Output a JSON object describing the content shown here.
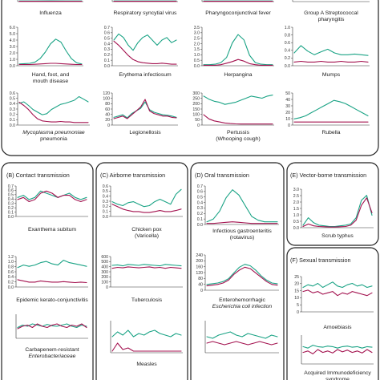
{
  "colors": {
    "series_a": "#1aa385",
    "series_b": "#a3124f",
    "series_c": "#8b36b5",
    "error": "#f2a3bd",
    "frame": "#222222"
  },
  "groups": [
    {
      "id": "A",
      "title": ""
    },
    {
      "id": "B",
      "title": "(B) Contact transmission"
    },
    {
      "id": "C",
      "title": "(C) Airborne transmission"
    },
    {
      "id": "D",
      "title": "(D) Oral transmission"
    },
    {
      "id": "E",
      "title": "(E) Vector-borne transmission"
    },
    {
      "id": "F",
      "title": "(F) Sexual transmission"
    }
  ],
  "chart_data": [
    {
      "id": "influenza",
      "type": "line",
      "title": [
        "Influenza"
      ],
      "yticks": [],
      "ylim": [
        0,
        1
      ],
      "series": [
        {
          "values": [
            0.1,
            0.1,
            0.12,
            0.1,
            0.1
          ]
        },
        {
          "values": [
            0.05,
            0.05,
            0.05,
            0.05,
            0.05
          ]
        }
      ]
    },
    {
      "id": "rsv",
      "type": "line",
      "title": [
        "Respiratory syncytial virus"
      ],
      "yticks": [],
      "ylim": [
        0,
        1
      ],
      "series": [
        {
          "values": [
            0.1,
            0.1,
            0.1,
            0.1,
            0.1
          ]
        },
        {
          "values": [
            0.05,
            0.05,
            0.05,
            0.05,
            0.05
          ]
        }
      ]
    },
    {
      "id": "pcf",
      "type": "line",
      "title": [
        "Pharyngoconjunctival fever"
      ],
      "yticks": [],
      "ylim": [
        0,
        1
      ],
      "series": [
        {
          "values": [
            0.1,
            0.1,
            0.1,
            0.1,
            0.1
          ]
        },
        {
          "values": [
            0.05,
            0.05,
            0.05,
            0.05,
            0.05
          ]
        }
      ]
    },
    {
      "id": "gas",
      "type": "line",
      "title": [
        "Group A Streptococcal",
        "pharyngitis"
      ],
      "yticks": [],
      "ylim": [
        0,
        1
      ],
      "series": []
    },
    {
      "id": "hfmd",
      "type": "line",
      "title": [
        "Hand, foot, and",
        "mouth disease"
      ],
      "yticks": [
        "0.0",
        "1.0",
        "2.0",
        "3.0",
        "4.0",
        "5.0",
        "6.0"
      ],
      "ylim": [
        0,
        6.5
      ],
      "series": [
        {
          "values": [
            0.3,
            0.35,
            0.4,
            0.6,
            1.2,
            2.3,
            3.7,
            4.5,
            4.0,
            2.5,
            1.2,
            0.5,
            0.3
          ]
        },
        {
          "values": [
            0.2,
            0.2,
            0.2,
            0.25,
            0.3,
            0.35,
            0.4,
            0.4,
            0.35,
            0.3,
            0.25,
            0.2,
            0.2
          ]
        }
      ]
    },
    {
      "id": "erythema",
      "type": "line",
      "title": [
        "Erythema infectiosum"
      ],
      "yticks": [
        "0.0",
        "0.1",
        "0.2",
        "0.3",
        "0.4",
        "0.5",
        "0.6",
        "0.7"
      ],
      "ylim": [
        0,
        0.75
      ],
      "series": [
        {
          "values": [
            0.5,
            0.62,
            0.55,
            0.4,
            0.3,
            0.45,
            0.55,
            0.6,
            0.5,
            0.4,
            0.5,
            0.55,
            0.45,
            0.5
          ]
        },
        {
          "values": [
            0.48,
            0.4,
            0.3,
            0.2,
            0.12,
            0.08,
            0.06,
            0.05,
            0.04,
            0.04,
            0.05,
            0.04,
            0.03,
            0.03
          ]
        }
      ]
    },
    {
      "id": "herpangina",
      "type": "line",
      "title": [
        "Herpangina"
      ],
      "yticks": [
        "0.0",
        "0.5",
        "1.0",
        "1.5",
        "2.0",
        "2.5",
        "3.0",
        "3.5"
      ],
      "ylim": [
        0,
        3.7
      ],
      "series": [
        {
          "values": [
            0.1,
            0.1,
            0.15,
            0.3,
            0.8,
            2.2,
            3.0,
            2.5,
            1.0,
            0.3,
            0.15,
            0.1,
            0.1
          ]
        },
        {
          "values": [
            0.05,
            0.05,
            0.05,
            0.1,
            0.25,
            0.4,
            0.6,
            0.45,
            0.2,
            0.1,
            0.05,
            0.05,
            0.05
          ]
        }
      ]
    },
    {
      "id": "mumps",
      "type": "line",
      "title": [
        "Mumps"
      ],
      "yticks": [
        "0.0",
        "0.2",
        "0.4",
        "0.6",
        "0.8",
        "1.0"
      ],
      "ylim": [
        0,
        1.05
      ],
      "series": [
        {
          "values": [
            0.35,
            0.55,
            0.4,
            0.3,
            0.38,
            0.45,
            0.35,
            0.3,
            0.3,
            0.32,
            0.3,
            0.28
          ]
        },
        {
          "values": [
            0.1,
            0.12,
            0.1,
            0.1,
            0.12,
            0.1,
            0.1,
            0.12,
            0.1,
            0.1,
            0.12,
            0.1
          ]
        }
      ]
    },
    {
      "id": "mycoplasma",
      "type": "line",
      "title": [
        "Mycoplasma pneumoniae",
        "pneumonia"
      ],
      "yticks": [
        "0.0",
        "0.1",
        "0.2",
        "0.3",
        "0.4",
        "0.5",
        "0.6"
      ],
      "ylim": [
        0,
        0.62
      ],
      "series": [
        {
          "values": [
            0.42,
            0.45,
            0.38,
            0.3,
            0.25,
            0.2,
            0.22,
            0.3,
            0.35,
            0.4,
            0.42,
            0.45,
            0.48,
            0.55,
            0.5,
            0.45
          ]
        },
        {
          "values": [
            0.44,
            0.38,
            0.3,
            0.2,
            0.12,
            0.08,
            0.07,
            0.06,
            0.06,
            0.07,
            0.06,
            0.06,
            0.05,
            0.05,
            0.05,
            0.05
          ]
        }
      ]
    },
    {
      "id": "legionellosis",
      "type": "line",
      "title": [
        "Legionellosis"
      ],
      "yticks": [
        "0",
        "20",
        "40",
        "60",
        "80",
        "100",
        "120"
      ],
      "ylim": [
        0,
        125
      ],
      "series": [
        {
          "values": [
            30,
            35,
            40,
            28,
            45,
            55,
            65,
            90,
            60,
            50,
            45,
            40,
            38,
            35,
            30
          ]
        },
        {
          "values": [
            25,
            30,
            35,
            25,
            40,
            55,
            70,
            100,
            55,
            45,
            40,
            35,
            35,
            30,
            28
          ]
        }
      ]
    },
    {
      "id": "pertussis",
      "type": "line",
      "title": [
        "Pertussis",
        "(Whooping cough)"
      ],
      "yticks": [
        "0",
        "50",
        "100",
        "150",
        "200",
        "250",
        "300"
      ],
      "ylim": [
        0,
        310
      ],
      "series": [
        {
          "values": [
            280,
            250,
            230,
            220,
            200,
            210,
            220,
            240,
            260,
            280,
            270,
            260,
            280,
            290
          ]
        },
        {
          "values": [
            100,
            60,
            40,
            30,
            20,
            15,
            12,
            10,
            10,
            10,
            10,
            10,
            10,
            10
          ]
        }
      ]
    },
    {
      "id": "rubella",
      "type": "line",
      "title": [
        "Rubella"
      ],
      "yticks": [
        "0",
        "10",
        "20",
        "30",
        "40",
        "50"
      ],
      "ylim": [
        0,
        52
      ],
      "series": [
        {
          "values": [
            10,
            12,
            15,
            20,
            25,
            30,
            35,
            40,
            38,
            35,
            30,
            25,
            20,
            15
          ]
        },
        {
          "values": [
            5,
            5,
            5,
            5,
            5,
            5,
            5,
            5,
            5,
            5,
            5,
            5,
            5,
            5
          ]
        }
      ]
    },
    {
      "id": "exanthema",
      "type": "line",
      "title": [
        "Exanthema subitum"
      ],
      "yticks": [
        "0.0",
        "0.1",
        "0.2",
        "0.3",
        "0.4",
        "0.5",
        "0.6",
        "0.7"
      ],
      "ylim": [
        0,
        0.72
      ],
      "series": [
        {
          "values": [
            0.45,
            0.5,
            0.4,
            0.45,
            0.6,
            0.55,
            0.5,
            0.45,
            0.5,
            0.55,
            0.45,
            0.4,
            0.45
          ]
        },
        {
          "values": [
            0.4,
            0.45,
            0.35,
            0.4,
            0.55,
            0.6,
            0.55,
            0.45,
            0.5,
            0.5,
            0.4,
            0.35,
            0.4
          ]
        }
      ]
    },
    {
      "id": "ekc",
      "type": "line",
      "title": [
        "Epidemic kerato-conjunctivitis"
      ],
      "yticks": [
        "0.0",
        "0.2",
        "0.4",
        "0.6",
        "0.8",
        "1.0",
        "1.2"
      ],
      "ylim": [
        0,
        1.25
      ],
      "series": [
        {
          "values": [
            0.8,
            0.9,
            0.85,
            0.9,
            1.0,
            1.05,
            0.95,
            0.9,
            1.1,
            1.0,
            0.95,
            0.9,
            0.85
          ]
        },
        {
          "values": [
            0.3,
            0.25,
            0.2,
            0.2,
            0.25,
            0.22,
            0.2,
            0.2,
            0.22,
            0.2,
            0.18,
            0.2,
            0.18
          ]
        }
      ]
    },
    {
      "id": "cre",
      "type": "line",
      "title": [
        "Carbapenem-resistant",
        "Enterobacteriaceae"
      ],
      "yticks": [],
      "ylim": [
        0,
        1
      ],
      "series": [
        {
          "values": [
            0.45,
            0.55,
            0.5,
            0.6,
            0.55,
            0.5,
            0.58,
            0.52,
            0.5,
            0.55,
            0.6,
            0.5,
            0.45,
            0.55,
            0.5
          ]
        },
        {
          "values": [
            0.4,
            0.5,
            0.55,
            0.45,
            0.6,
            0.5,
            0.45,
            0.55,
            0.6,
            0.5,
            0.45,
            0.55,
            0.5,
            0.6,
            0.45
          ]
        }
      ]
    },
    {
      "id": "chickenpox",
      "type": "line",
      "title": [
        "Chicken pox",
        "(Varicella)"
      ],
      "yticks": [
        "0.0",
        "0.1",
        "0.2",
        "0.3",
        "0.4",
        "0.5",
        "0.6"
      ],
      "ylim": [
        0,
        0.62
      ],
      "series": [
        {
          "values": [
            0.3,
            0.25,
            0.22,
            0.28,
            0.3,
            0.25,
            0.2,
            0.22,
            0.3,
            0.35,
            0.3,
            0.25,
            0.45,
            0.55
          ]
        },
        {
          "values": [
            0.25,
            0.2,
            0.15,
            0.12,
            0.1,
            0.1,
            0.08,
            0.08,
            0.1,
            0.12,
            0.1,
            0.1,
            0.12,
            0.15
          ]
        }
      ]
    },
    {
      "id": "tuberculosis",
      "type": "line",
      "title": [
        "Tuberculosis"
      ],
      "yticks": [
        "0",
        "100",
        "200",
        "300",
        "400",
        "500",
        "600"
      ],
      "ylim": [
        0,
        620
      ],
      "series": [
        {
          "values": [
            440,
            450,
            430,
            460,
            450,
            440,
            460,
            450,
            440,
            430,
            460,
            450,
            440,
            430
          ]
        },
        {
          "values": [
            380,
            400,
            390,
            410,
            400,
            390,
            400,
            410,
            390,
            400,
            380,
            400,
            390,
            380
          ]
        }
      ]
    },
    {
      "id": "measles",
      "type": "line",
      "title": [
        "Measles"
      ],
      "yticks": [],
      "ylim": [
        0,
        1
      ],
      "series": [
        {
          "values": [
            0.5,
            0.65,
            0.55,
            0.7,
            0.5,
            0.6,
            0.55,
            0.65,
            0.7,
            0.6,
            0.55,
            0.5,
            0.6,
            0.55
          ]
        },
        {
          "values": [
            0.05,
            0.3,
            0.1,
            0.15,
            0.05,
            0.05,
            0.05,
            0.05,
            0.05,
            0.05,
            0.05,
            0.05,
            0.05,
            0.05
          ]
        }
      ]
    },
    {
      "id": "gastroenteritis",
      "type": "line",
      "title": [
        "Infectious gastroenteritis",
        "(rotavirus)"
      ],
      "yticks": [
        "0.0",
        "0.1",
        "0.2",
        "0.3",
        "0.4",
        "0.5",
        "0.6",
        "0.7"
      ],
      "ylim": [
        0,
        0.72
      ],
      "series": [
        {
          "values": [
            0.05,
            0.1,
            0.25,
            0.5,
            0.65,
            0.55,
            0.35,
            0.15,
            0.08,
            0.05,
            0.05,
            0.05
          ]
        },
        {
          "values": [
            0.02,
            0.02,
            0.03,
            0.04,
            0.05,
            0.04,
            0.03,
            0.02,
            0.02,
            0.02,
            0.02,
            0.02
          ]
        }
      ]
    },
    {
      "id": "ehec",
      "type": "line",
      "title": [
        "Enterohemorrhagic",
        "Escherichia coli infection"
      ],
      "yticks": [
        "0",
        "40",
        "80",
        "120",
        "160",
        "200",
        "240"
      ],
      "ylim": [
        0,
        245
      ],
      "series": [
        {
          "values": [
            40,
            45,
            50,
            60,
            80,
            120,
            160,
            180,
            170,
            140,
            100,
            70,
            50,
            45
          ]
        },
        {
          "values": [
            30,
            35,
            40,
            50,
            70,
            110,
            140,
            160,
            150,
            120,
            90,
            60,
            40,
            35
          ]
        }
      ]
    },
    {
      "id": "hepatitisA",
      "type": "line",
      "title": [
        ""
      ],
      "yticks": [],
      "ylim": [
        0,
        1
      ],
      "series": [
        {
          "values": [
            0.5,
            0.45,
            0.55,
            0.6,
            0.65,
            0.55,
            0.5,
            0.6,
            0.55,
            0.5,
            0.45,
            0.55,
            0.5
          ]
        },
        {
          "values": [
            0.3,
            0.35,
            0.3,
            0.25,
            0.3,
            0.35,
            0.3,
            0.25,
            0.3,
            0.35,
            0.3,
            0.25,
            0.3
          ]
        }
      ]
    },
    {
      "id": "scrubtyphus",
      "type": "line",
      "title": [
        "Scrub typhus"
      ],
      "yticks": [
        "0.0",
        "0.5",
        "1.0",
        "1.5",
        "2.0",
        "2.5",
        "3.0"
      ],
      "ylim": [
        0,
        3.1
      ],
      "series": [
        {
          "values": [
            0.2,
            0.8,
            0.4,
            0.2,
            0.15,
            0.1,
            0.1,
            0.15,
            0.2,
            0.3,
            0.8,
            2.2,
            2.6,
            1.0
          ]
        },
        {
          "values": [
            0.1,
            0.3,
            0.15,
            0.1,
            0.08,
            0.05,
            0.05,
            0.08,
            0.1,
            0.2,
            0.6,
            1.8,
            2.4,
            1.2
          ]
        }
      ]
    },
    {
      "id": "amoebiasis",
      "type": "line",
      "title": [
        "Amoebiasis"
      ],
      "yticks": [
        "0",
        "5",
        "10",
        "15",
        "20",
        "25"
      ],
      "ylim": [
        0,
        26
      ],
      "series": [
        {
          "values": [
            18,
            20,
            19,
            21,
            18,
            20,
            22,
            19,
            18,
            20,
            21,
            19,
            20,
            18,
            19
          ]
        },
        {
          "values": [
            15,
            16,
            14,
            15,
            13,
            14,
            15,
            12,
            14,
            13,
            15,
            14,
            13,
            12,
            14
          ]
        }
      ]
    },
    {
      "id": "aids",
      "type": "line",
      "title": [
        "Acquired Immunodeficiency",
        "syndrome"
      ],
      "yticks": [],
      "ylim": [
        0,
        1
      ],
      "series": [
        {
          "values": [
            0.6,
            0.55,
            0.65,
            0.6,
            0.58,
            0.62,
            0.6,
            0.55,
            0.6,
            0.62,
            0.58,
            0.6,
            0.55,
            0.6,
            0.58
          ]
        },
        {
          "values": [
            0.4,
            0.45,
            0.35,
            0.5,
            0.4,
            0.45,
            0.38,
            0.5,
            0.42,
            0.48,
            0.4,
            0.45,
            0.38,
            0.5,
            0.4
          ]
        }
      ]
    }
  ]
}
